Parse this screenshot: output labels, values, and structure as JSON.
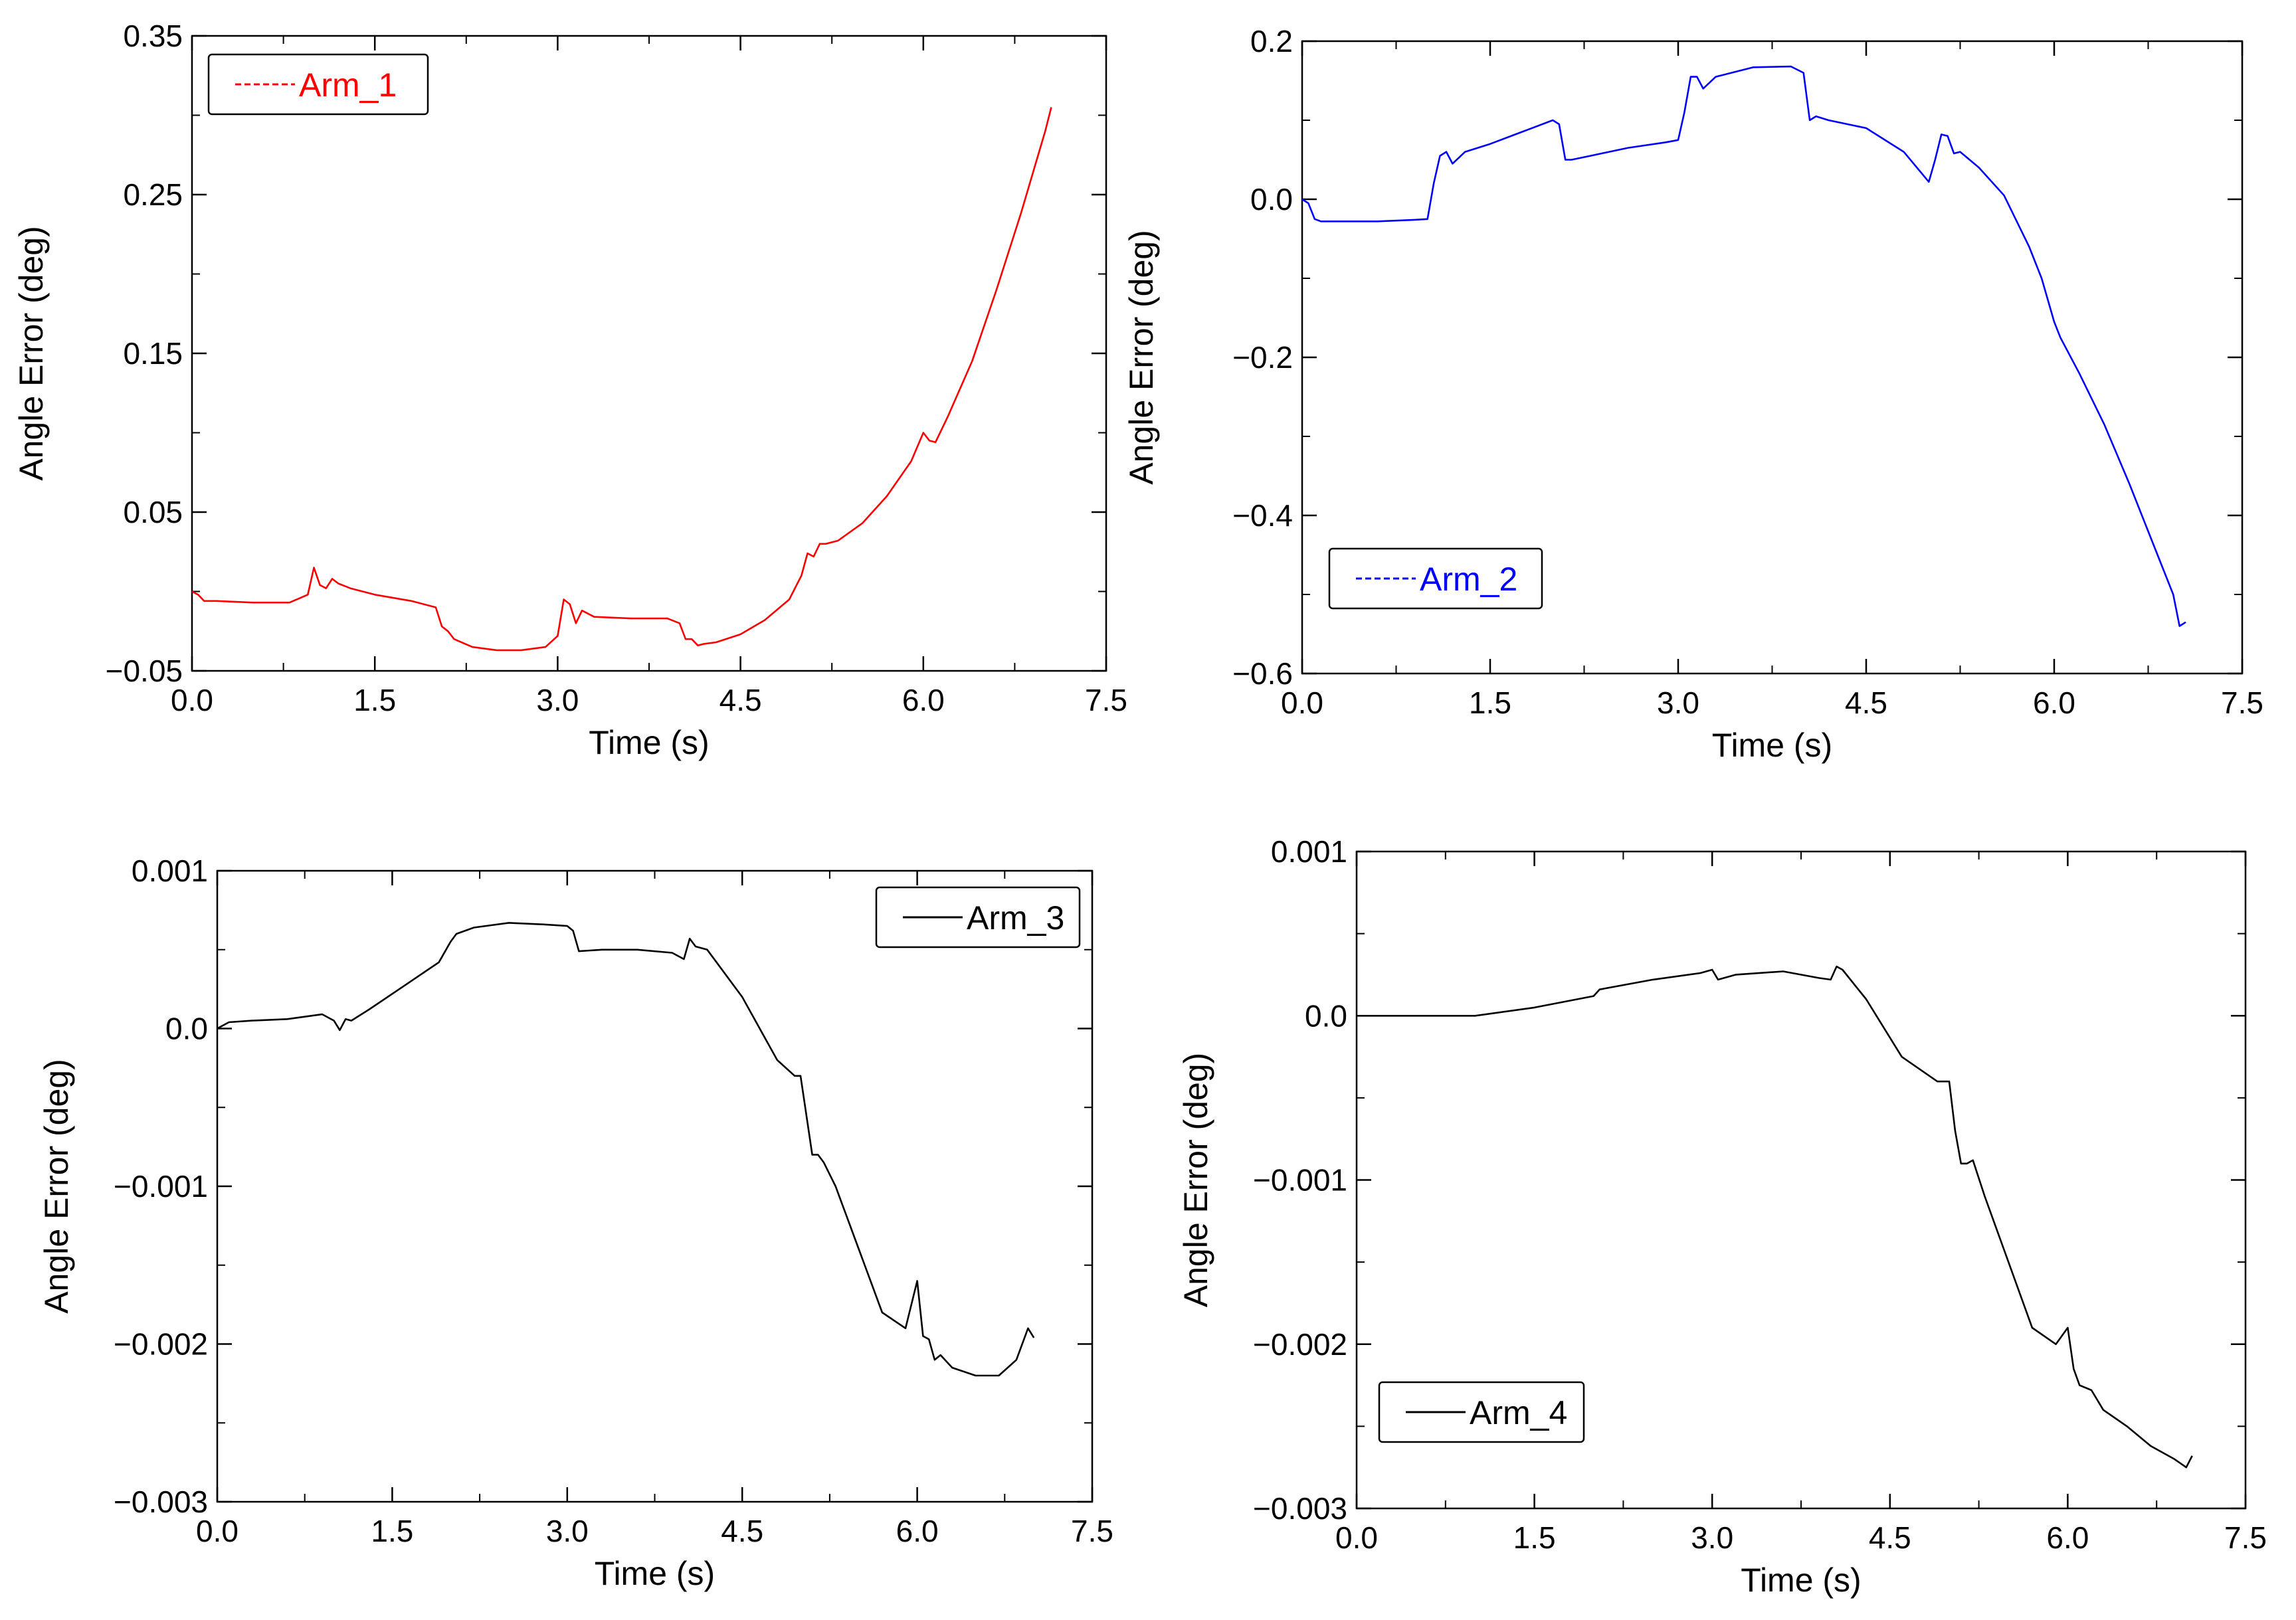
{
  "chart_data": [
    {
      "type": "line",
      "xlabel": "Time (s)",
      "ylabel": "Angle Error (deg)",
      "xlim": [
        0,
        7.5
      ],
      "ylim": [
        -0.05,
        0.35
      ],
      "xticks": [
        0.0,
        1.5,
        3.0,
        4.5,
        6.0,
        7.5
      ],
      "xtick_labels": [
        "0.0",
        "1.5",
        "3.0",
        "4.5",
        "6.0",
        "7.5"
      ],
      "yticks": [
        -0.05,
        0.05,
        0.15,
        0.25,
        0.35
      ],
      "ytick_labels": [
        "−0.05",
        "0.05",
        "0.15",
        "0.25",
        "0.35"
      ],
      "ytick_minor": [
        0.0,
        0.1,
        0.2,
        0.3
      ],
      "legend_position": "top-left",
      "series": [
        {
          "name": "Arm_1",
          "color": "#ff0000",
          "legend_style": "dashed",
          "x": [
            0.0,
            0.05,
            0.1,
            0.2,
            0.5,
            0.8,
            0.95,
            1.0,
            1.05,
            1.1,
            1.15,
            1.2,
            1.3,
            1.5,
            1.8,
            2.0,
            2.05,
            2.1,
            2.15,
            2.3,
            2.5,
            2.7,
            2.9,
            3.0,
            3.05,
            3.1,
            3.15,
            3.2,
            3.3,
            3.6,
            3.9,
            4.0,
            4.05,
            4.1,
            4.15,
            4.2,
            4.3,
            4.5,
            4.7,
            4.9,
            5.0,
            5.05,
            5.1,
            5.15,
            5.2,
            5.3,
            5.5,
            5.7,
            5.9,
            6.0,
            6.05,
            6.1,
            6.2,
            6.4,
            6.6,
            6.8,
            7.0,
            7.05
          ],
          "y": [
            0.0,
            -0.002,
            -0.006,
            -0.006,
            -0.007,
            -0.007,
            -0.002,
            0.015,
            0.004,
            0.002,
            0.008,
            0.005,
            0.002,
            -0.002,
            -0.006,
            -0.01,
            -0.022,
            -0.025,
            -0.03,
            -0.035,
            -0.037,
            -0.037,
            -0.035,
            -0.028,
            -0.005,
            -0.008,
            -0.02,
            -0.012,
            -0.016,
            -0.017,
            -0.017,
            -0.02,
            -0.03,
            -0.03,
            -0.034,
            -0.033,
            -0.032,
            -0.027,
            -0.018,
            -0.005,
            0.01,
            0.024,
            0.022,
            0.03,
            0.03,
            0.032,
            0.043,
            0.06,
            0.082,
            0.1,
            0.095,
            0.094,
            0.11,
            0.145,
            0.19,
            0.238,
            0.29,
            0.305
          ]
        }
      ]
    },
    {
      "type": "line",
      "xlabel": "Time (s)",
      "ylabel": "Angle Error (deg)",
      "xlim": [
        0,
        7.5
      ],
      "ylim": [
        -0.6,
        0.2
      ],
      "xticks": [
        0.0,
        1.5,
        3.0,
        4.5,
        6.0,
        7.5
      ],
      "xtick_labels": [
        "0.0",
        "1.5",
        "3.0",
        "4.5",
        "6.0",
        "7.5"
      ],
      "yticks": [
        -0.6,
        -0.4,
        -0.2,
        0.0,
        0.2
      ],
      "ytick_labels": [
        "−0.6",
        "−0.4",
        "−0.2",
        "0.0",
        "0.2"
      ],
      "ytick_minor": [
        -0.5,
        -0.3,
        -0.1,
        0.1
      ],
      "legend_position": "lower-left",
      "series": [
        {
          "name": "Arm_2",
          "color": "#0000ff",
          "legend_style": "dashed",
          "x": [
            0.0,
            0.05,
            0.1,
            0.15,
            0.3,
            0.6,
            0.9,
            1.0,
            1.05,
            1.1,
            1.15,
            1.2,
            1.3,
            1.5,
            1.8,
            2.0,
            2.05,
            2.1,
            2.15,
            2.3,
            2.6,
            2.9,
            3.0,
            3.05,
            3.1,
            3.15,
            3.2,
            3.3,
            3.6,
            3.9,
            4.0,
            4.05,
            4.1,
            4.2,
            4.5,
            4.8,
            5.0,
            5.05,
            5.1,
            5.15,
            5.2,
            5.25,
            5.4,
            5.6,
            5.8,
            5.9,
            6.0,
            6.05,
            6.2,
            6.4,
            6.6,
            6.8,
            6.95,
            7.0,
            7.05
          ],
          "y": [
            0.0,
            -0.005,
            -0.025,
            -0.028,
            -0.028,
            -0.028,
            -0.026,
            -0.025,
            0.02,
            0.055,
            0.06,
            0.045,
            0.06,
            0.07,
            0.088,
            0.1,
            0.095,
            0.05,
            0.05,
            0.055,
            0.065,
            0.072,
            0.075,
            0.11,
            0.155,
            0.155,
            0.14,
            0.155,
            0.167,
            0.168,
            0.16,
            0.1,
            0.105,
            0.1,
            0.09,
            0.06,
            0.022,
            0.05,
            0.082,
            0.08,
            0.058,
            0.06,
            0.04,
            0.005,
            -0.06,
            -0.1,
            -0.155,
            -0.175,
            -0.22,
            -0.285,
            -0.36,
            -0.44,
            -0.5,
            -0.54,
            -0.535
          ]
        }
      ]
    },
    {
      "type": "line",
      "xlabel": "Time (s)",
      "ylabel": "Angle Error (deg)",
      "xlim": [
        0,
        7.5
      ],
      "ylim": [
        -0.003,
        0.001
      ],
      "xticks": [
        0.0,
        1.5,
        3.0,
        4.5,
        6.0,
        7.5
      ],
      "xtick_labels": [
        "0.0",
        "1.5",
        "3.0",
        "4.5",
        "6.0",
        "7.5"
      ],
      "yticks": [
        -0.003,
        -0.002,
        -0.001,
        0.0,
        0.001
      ],
      "ytick_labels": [
        "−0.003",
        "−0.002",
        "−0.001",
        "0.0",
        "0.001"
      ],
      "ytick_minor": [
        -0.0025,
        -0.0015,
        -0.0005,
        0.0005
      ],
      "legend_position": "top-right",
      "series": [
        {
          "name": "Arm_3",
          "color": "#000000",
          "legend_style": "solid",
          "x": [
            0.0,
            0.1,
            0.3,
            0.6,
            0.9,
            1.0,
            1.05,
            1.1,
            1.15,
            1.3,
            1.6,
            1.9,
            2.0,
            2.05,
            2.2,
            2.5,
            2.8,
            3.0,
            3.05,
            3.1,
            3.3,
            3.6,
            3.9,
            4.0,
            4.05,
            4.1,
            4.2,
            4.5,
            4.8,
            4.95,
            5.0,
            5.05,
            5.1,
            5.15,
            5.2,
            5.3,
            5.5,
            5.7,
            5.9,
            6.0,
            6.05,
            6.1,
            6.15,
            6.2,
            6.3,
            6.5,
            6.7,
            6.85,
            6.95,
            7.0
          ],
          "y": [
            0.0,
            4e-05,
            5e-05,
            6e-05,
            9e-05,
            5e-05,
            -1e-05,
            6e-05,
            5e-05,
            0.00012,
            0.00027,
            0.00042,
            0.00055,
            0.0006,
            0.00064,
            0.00067,
            0.00066,
            0.00065,
            0.00062,
            0.00049,
            0.0005,
            0.0005,
            0.00048,
            0.00044,
            0.00057,
            0.00052,
            0.0005,
            0.0002,
            -0.0002,
            -0.0003,
            -0.0003,
            -0.00055,
            -0.0008,
            -0.0008,
            -0.00085,
            -0.001,
            -0.0014,
            -0.0018,
            -0.0019,
            -0.0016,
            -0.00195,
            -0.00197,
            -0.0021,
            -0.00207,
            -0.00215,
            -0.0022,
            -0.0022,
            -0.0021,
            -0.0019,
            -0.00196
          ]
        }
      ]
    },
    {
      "type": "line",
      "xlabel": "Time (s)",
      "ylabel": "Angle Error (deg)",
      "xlim": [
        0,
        7.5
      ],
      "ylim": [
        -0.003,
        0.001
      ],
      "xticks": [
        0.0,
        1.5,
        3.0,
        4.5,
        6.0,
        7.5
      ],
      "xtick_labels": [
        "0.0",
        "1.5",
        "3.0",
        "4.5",
        "6.0",
        "7.5"
      ],
      "yticks": [
        -0.003,
        -0.002,
        -0.001,
        0.0,
        0.001
      ],
      "ytick_labels": [
        "−0.003",
        "−0.002",
        "−0.001",
        "0.0",
        "0.001"
      ],
      "ytick_minor": [
        -0.0025,
        -0.0015,
        -0.0005,
        0.0005
      ],
      "legend_position": "lower-left",
      "series": [
        {
          "name": "Arm_4",
          "color": "#000000",
          "legend_style": "solid",
          "x": [
            0.0,
            0.5,
            1.0,
            1.5,
            2.0,
            2.05,
            2.5,
            2.9,
            3.0,
            3.05,
            3.2,
            3.6,
            3.9,
            4.0,
            4.05,
            4.1,
            4.3,
            4.6,
            4.9,
            5.0,
            5.05,
            5.1,
            5.15,
            5.2,
            5.3,
            5.5,
            5.7,
            5.9,
            6.0,
            6.05,
            6.1,
            6.2,
            6.3,
            6.5,
            6.7,
            6.9,
            7.0,
            7.05
          ],
          "y": [
            0.0,
            0.0,
            0.0,
            5e-05,
            0.00012,
            0.00016,
            0.00022,
            0.00026,
            0.00028,
            0.00022,
            0.00025,
            0.00027,
            0.00023,
            0.00022,
            0.0003,
            0.00028,
            0.0001,
            -0.00025,
            -0.0004,
            -0.0004,
            -0.0007,
            -0.0009,
            -0.0009,
            -0.00088,
            -0.0011,
            -0.0015,
            -0.0019,
            -0.002,
            -0.0019,
            -0.00215,
            -0.00225,
            -0.00228,
            -0.0024,
            -0.0025,
            -0.00262,
            -0.0027,
            -0.00275,
            -0.00268
          ]
        }
      ]
    }
  ]
}
